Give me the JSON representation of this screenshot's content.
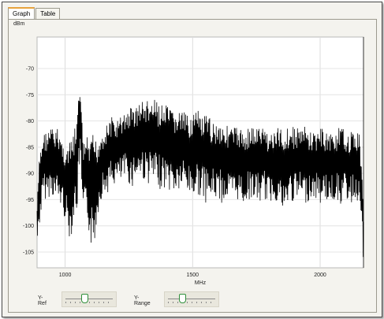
{
  "tabs": [
    {
      "label": "Graph",
      "active": true
    },
    {
      "label": "Table",
      "active": false
    }
  ],
  "controls": {
    "y_ref_label": "Y-Ref",
    "y_range_label": "Y-Range",
    "y_ref_level": 0.4,
    "y_range_level": 0.3
  },
  "chart_data": {
    "type": "line",
    "ylabel": "dBm",
    "xlabel": "MHz",
    "xlim": [
      890,
      2170
    ],
    "ylim": [
      -108,
      -64
    ],
    "x_ticks": [
      1000,
      1500,
      2000
    ],
    "y_ticks": [
      -70,
      -75,
      -80,
      -85,
      -90,
      -95,
      -100,
      -105
    ],
    "grid": true,
    "series": [
      {
        "color": "#000000",
        "x": [
          890,
          900,
          915,
          930,
          945,
          960,
          975,
          990,
          1005,
          1020,
          1035,
          1048,
          1058,
          1070,
          1085,
          1100,
          1112,
          1125,
          1140,
          1160,
          1180,
          1200,
          1220,
          1240,
          1260,
          1280,
          1300,
          1320,
          1340,
          1360,
          1380,
          1400,
          1420,
          1440,
          1460,
          1480,
          1500,
          1520,
          1540,
          1560,
          1580,
          1600,
          1620,
          1640,
          1660,
          1680,
          1700,
          1720,
          1740,
          1760,
          1780,
          1800,
          1820,
          1840,
          1860,
          1880,
          1900,
          1920,
          1940,
          1960,
          1980,
          2000,
          2020,
          2040,
          2060,
          2080,
          2100,
          2120,
          2140,
          2155,
          2165,
          2170
        ],
        "upper": [
          -96,
          -86,
          -82,
          -82,
          -81,
          -82,
          -81,
          -84,
          -85,
          -84,
          -82,
          -79,
          -71,
          -84,
          -83,
          -84,
          -82,
          -84,
          -82,
          -81,
          -79,
          -80,
          -79,
          -78,
          -77,
          -77,
          -76,
          -76,
          -76,
          -76,
          -77,
          -77,
          -78,
          -78,
          -78,
          -79,
          -78,
          -78,
          -79,
          -79,
          -80,
          -80,
          -80,
          -81,
          -81,
          -81,
          -82,
          -81,
          -81,
          -81,
          -81,
          -82,
          -82,
          -81,
          -81,
          -81,
          -81,
          -81,
          -81,
          -82,
          -82,
          -81,
          -82,
          -82,
          -82,
          -81,
          -82,
          -82,
          -82,
          -82,
          -90,
          -96
        ],
        "lower": [
          -104,
          -100,
          -95,
          -95,
          -94,
          -95,
          -96,
          -97,
          -100,
          -103,
          -99,
          -97,
          -88,
          -99,
          -98,
          -104,
          -105,
          -99,
          -95,
          -94,
          -93,
          -92,
          -92,
          -91,
          -93,
          -91,
          -91,
          -92,
          -92,
          -93,
          -93,
          -93,
          -94,
          -94,
          -93,
          -94,
          -95,
          -94,
          -95,
          -96,
          -95,
          -95,
          -96,
          -95,
          -96,
          -95,
          -96,
          -95,
          -95,
          -96,
          -95,
          -96,
          -95,
          -96,
          -99,
          -95,
          -96,
          -95,
          -96,
          -95,
          -95,
          -96,
          -95,
          -96,
          -95,
          -96,
          -95,
          -96,
          -95,
          -96,
          -104,
          -108
        ]
      }
    ]
  }
}
